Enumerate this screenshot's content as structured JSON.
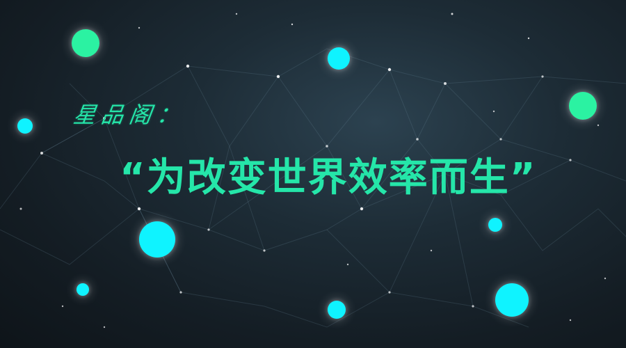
{
  "brand": {
    "text": "星品阁："
  },
  "slogan": {
    "text": "“为改变世界效率而生”"
  },
  "colors": {
    "accent": "#25e6a9",
    "cyan": "#0ff3ff",
    "green": "#2bf2a2",
    "background": "#141d24"
  }
}
